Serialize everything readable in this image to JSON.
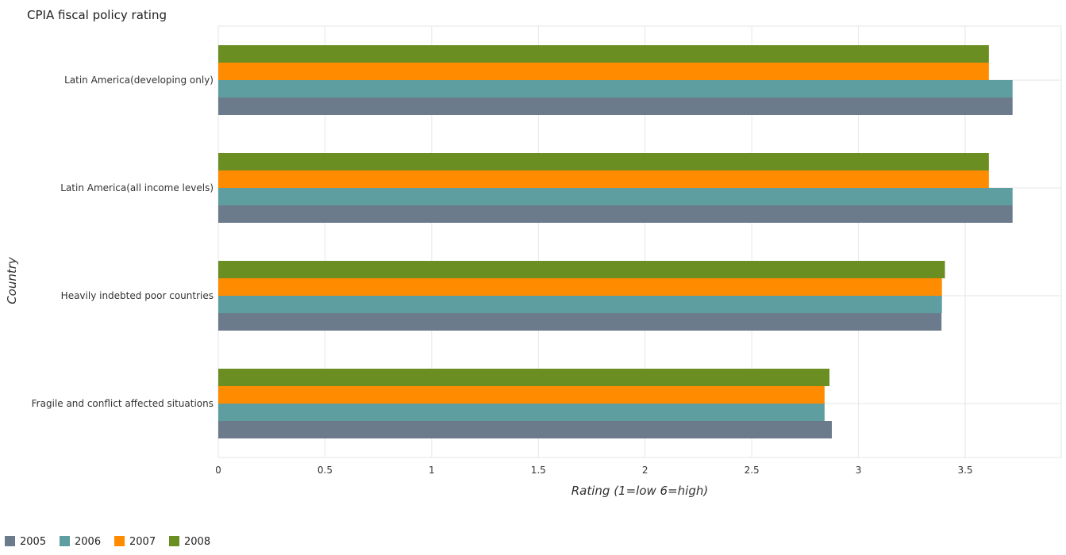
{
  "chart_data": {
    "type": "bar",
    "orientation": "horizontal",
    "title": "CPIA fiscal policy rating",
    "xlabel": "Rating (1=low 6=high)",
    "ylabel": "Country",
    "xlim": [
      0,
      3.95
    ],
    "xticks": [
      "0",
      "0.5",
      "1",
      "1.5",
      "2",
      "2.5",
      "3",
      "3.5"
    ],
    "grid": true,
    "legend_position": "bottom-left",
    "categories": [
      "Fragile and conflict affected situations",
      "Heavily indebted poor countries",
      "Latin America(all income levels)",
      "Latin America(developing only)"
    ],
    "series": [
      {
        "name": "2005",
        "color": "#6b7b8c",
        "values": [
          2.875,
          3.389,
          3.722,
          3.722
        ]
      },
      {
        "name": "2006",
        "color": "#5f9ea0",
        "values": [
          2.841,
          3.391,
          3.722,
          3.722
        ]
      },
      {
        "name": "2007",
        "color": "#ff8c00",
        "values": [
          2.841,
          3.391,
          3.611,
          3.611
        ]
      },
      {
        "name": "2008",
        "color": "#6b8e23",
        "values": [
          2.864,
          3.405,
          3.611,
          3.611
        ]
      }
    ]
  }
}
